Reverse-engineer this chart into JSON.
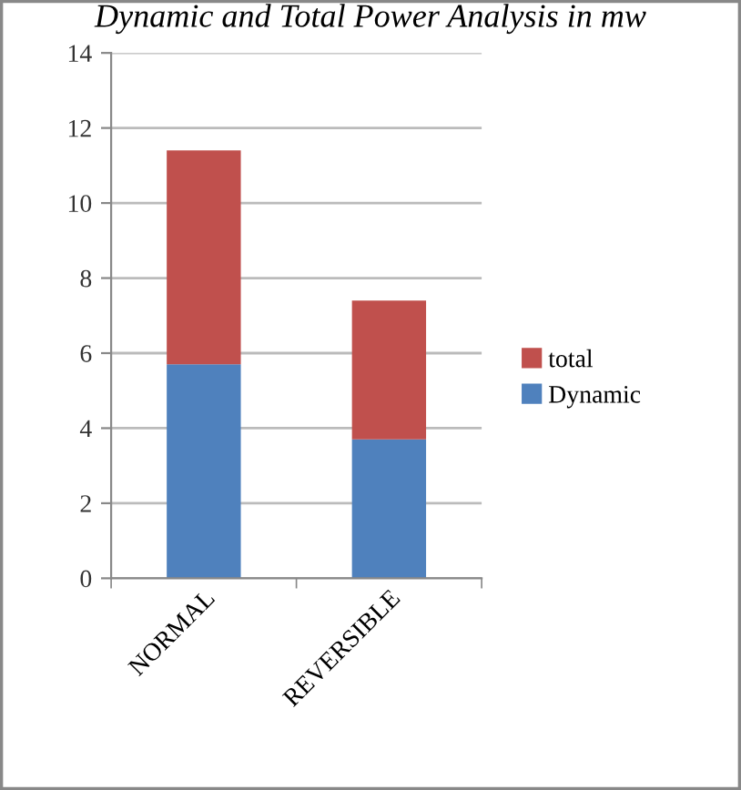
{
  "chart_data": {
    "type": "bar",
    "title": "Dynamic and Total Power Analysis in mw",
    "categories": [
      "NORMAL",
      "REVERSIBLE"
    ],
    "stacked": true,
    "series": [
      {
        "name": "Dynamic",
        "color": "#4f81bd",
        "values": [
          5.7,
          3.7
        ]
      },
      {
        "name": "total",
        "color": "#c0504d",
        "values": [
          5.7,
          3.7
        ]
      }
    ],
    "ylim": [
      0,
      14
    ],
    "yticks": [
      0,
      2,
      4,
      6,
      8,
      10,
      12,
      14
    ],
    "grid": "y",
    "legend": "right"
  }
}
